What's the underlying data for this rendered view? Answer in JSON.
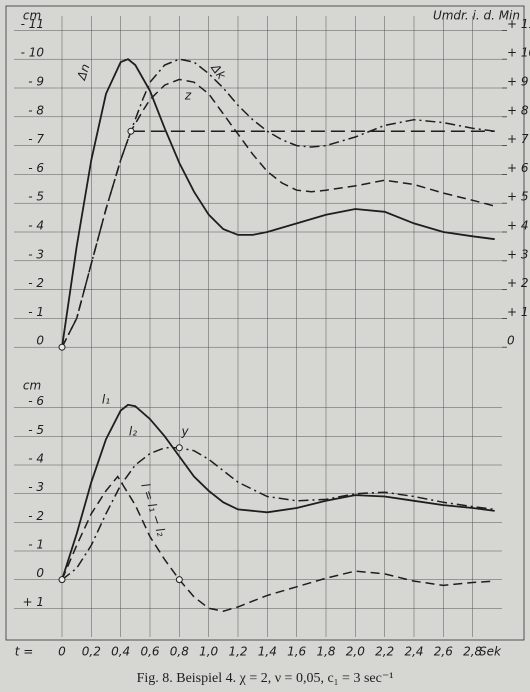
{
  "chart_data": [
    {
      "type": "line",
      "ylabel": "cm",
      "y2label": "Umdr. i. d. Min",
      "xlim": [
        0,
        3.0
      ],
      "ylim": [
        1,
        -11.5
      ],
      "y2lim": [
        -1,
        11.5
      ],
      "grid": true,
      "yticks": [
        {
          "value": -11,
          "label": "- 11"
        },
        {
          "value": -10,
          "label": "- 10"
        },
        {
          "value": -9,
          "label": "- 9"
        },
        {
          "value": -8,
          "label": "- 8"
        },
        {
          "value": -7,
          "label": "- 7"
        },
        {
          "value": -6,
          "label": "- 6"
        },
        {
          "value": -5,
          "label": "- 5"
        },
        {
          "value": -4,
          "label": "- 4"
        },
        {
          "value": -3,
          "label": "- 3"
        },
        {
          "value": -2,
          "label": "- 2"
        },
        {
          "value": -1,
          "label": "- 1"
        },
        0
      ],
      "y2ticks": [
        {
          "value": 11,
          "label": "+ 11"
        },
        {
          "value": 10,
          "label": "+ 10"
        },
        {
          "value": 9,
          "label": "+ 9"
        },
        {
          "value": 8,
          "label": "+ 8"
        },
        {
          "value": 7,
          "label": "+ 7"
        },
        {
          "value": 6,
          "label": "+ 6"
        },
        {
          "value": 5,
          "label": "+ 5"
        },
        {
          "value": 4,
          "label": "+ 4"
        },
        {
          "value": 3,
          "label": "+ 3"
        },
        {
          "value": 2,
          "label": "+ 2"
        },
        {
          "value": 1,
          "label": "+ 1"
        },
        0
      ],
      "series": [
        {
          "color": "#1e1e1e",
          "style": "solid",
          "x": [
            0,
            0.1,
            0.2,
            0.3,
            0.4,
            0.45,
            0.5,
            0.6,
            0.7,
            0.8,
            0.9,
            1.0,
            1.1,
            1.2,
            1.3,
            1.4,
            1.6,
            1.8,
            2.0,
            2.2,
            2.4,
            2.6,
            2.8,
            2.95
          ],
          "values": [
            0,
            -3.5,
            -6.5,
            -8.8,
            -9.9,
            -10.0,
            -9.8,
            -8.9,
            -7.6,
            -6.4,
            -5.4,
            -4.6,
            -4.1,
            -3.9,
            -3.9,
            -4.0,
            -4.3,
            -4.6,
            -4.8,
            -4.7,
            -4.3,
            -4.0,
            -3.85,
            -3.75
          ]
        },
        {
          "color": "#1e1e1e",
          "style": "dashdot",
          "x": [
            0,
            0.1,
            0.2,
            0.3,
            0.4,
            0.47,
            0.55,
            0.6,
            0.7,
            0.8,
            0.9,
            1.0,
            1.1,
            1.2,
            1.3,
            1.4,
            1.5,
            1.6,
            1.7,
            1.8,
            2.0,
            2.2,
            2.4,
            2.6,
            2.8,
            2.95
          ],
          "values": [
            0,
            -1.0,
            -2.9,
            -4.8,
            -6.5,
            -7.5,
            -8.6,
            -9.2,
            -9.8,
            -10.0,
            -9.9,
            -9.5,
            -9.0,
            -8.4,
            -7.9,
            -7.5,
            -7.2,
            -7.0,
            -6.95,
            -7.0,
            -7.3,
            -7.7,
            -7.9,
            -7.8,
            -7.6,
            -7.5
          ]
        },
        {
          "color": "#1e1e1e",
          "style": "dashed",
          "x": [
            0,
            0.1,
            0.2,
            0.3,
            0.4,
            0.47,
            0.55,
            0.6,
            0.7,
            0.8,
            0.9,
            1.0,
            1.1,
            1.2,
            1.3,
            1.4,
            1.5,
            1.6,
            1.7,
            1.8,
            2.0,
            2.2,
            2.4,
            2.6,
            2.8,
            2.95
          ],
          "values": [
            0,
            -1.0,
            -2.9,
            -4.8,
            -6.5,
            -7.5,
            -8.2,
            -8.6,
            -9.1,
            -9.3,
            -9.2,
            -8.8,
            -8.1,
            -7.4,
            -6.7,
            -6.1,
            -5.7,
            -5.45,
            -5.4,
            -5.45,
            -5.6,
            -5.8,
            -5.65,
            -5.35,
            -5.1,
            -4.9
          ]
        },
        {
          "color": "#1e1e1e",
          "style": "longdash",
          "x": [
            0.47,
            2.95
          ],
          "values": [
            -7.5,
            -7.5
          ]
        }
      ],
      "markers": [
        {
          "x": 0,
          "y": 0
        },
        {
          "x": 0.47,
          "y": -7.5
        }
      ],
      "annotations": [
        "Δn",
        "Δk",
        "z"
      ]
    },
    {
      "type": "line",
      "ylabel": "cm",
      "xlabel": "Sek",
      "xprefix": "t =",
      "xlim": [
        0,
        3.0
      ],
      "ylim": [
        2,
        -7
      ],
      "grid": true,
      "yticks": [
        {
          "value": -6,
          "label": "- 6"
        },
        {
          "value": -5,
          "label": "- 5"
        },
        {
          "value": -4,
          "label": "- 4"
        },
        {
          "value": -3,
          "label": "- 3"
        },
        {
          "value": -2,
          "label": "- 2"
        },
        {
          "value": -1,
          "label": "- 1"
        },
        0,
        {
          "value": 1,
          "label": "+ 1"
        }
      ],
      "xticks": [
        0,
        {
          "value": 0.2,
          "label": "0,2"
        },
        {
          "value": 0.4,
          "label": "0,4"
        },
        {
          "value": 0.6,
          "label": "0,6"
        },
        {
          "value": 0.8,
          "label": "0,8"
        },
        {
          "value": 1.0,
          "label": "1,0"
        },
        {
          "value": 1.2,
          "label": "1,2"
        },
        {
          "value": 1.4,
          "label": "1,4"
        },
        {
          "value": 1.6,
          "label": "1,6"
        },
        {
          "value": 1.8,
          "label": "1,8"
        },
        {
          "value": 2.0,
          "label": "2,0"
        },
        {
          "value": 2.2,
          "label": "2,2"
        },
        {
          "value": 2.4,
          "label": "2,4"
        },
        {
          "value": 2.6,
          "label": "2,6"
        },
        {
          "value": 2.8,
          "label": "2,8"
        }
      ],
      "series": [
        {
          "color": "#1e1e1e",
          "style": "solid",
          "x": [
            0,
            0.1,
            0.2,
            0.3,
            0.4,
            0.45,
            0.5,
            0.6,
            0.7,
            0.8,
            0.9,
            1.0,
            1.1,
            1.2,
            1.4,
            1.6,
            1.8,
            2.0,
            2.2,
            2.4,
            2.6,
            2.8,
            2.95
          ],
          "values": [
            0,
            -1.6,
            -3.4,
            -4.9,
            -5.9,
            -6.1,
            -6.05,
            -5.6,
            -5.0,
            -4.3,
            -3.6,
            -3.1,
            -2.7,
            -2.45,
            -2.35,
            -2.5,
            -2.75,
            -2.95,
            -2.9,
            -2.75,
            -2.6,
            -2.5,
            -2.4
          ]
        },
        {
          "color": "#1e1e1e",
          "style": "dashdot",
          "x": [
            0,
            0.1,
            0.2,
            0.3,
            0.4,
            0.5,
            0.6,
            0.7,
            0.8,
            0.9,
            1.0,
            1.1,
            1.2,
            1.4,
            1.6,
            1.8,
            2.0,
            2.2,
            2.4,
            2.6,
            2.8,
            2.95
          ],
          "values": [
            0,
            -0.4,
            -1.2,
            -2.3,
            -3.3,
            -4.0,
            -4.4,
            -4.6,
            -4.6,
            -4.5,
            -4.2,
            -3.8,
            -3.4,
            -2.9,
            -2.75,
            -2.8,
            -3.0,
            -3.05,
            -2.9,
            -2.7,
            -2.55,
            -2.45
          ]
        },
        {
          "color": "#1e1e1e",
          "style": "dashed",
          "x": [
            0,
            0.1,
            0.2,
            0.3,
            0.38,
            0.5,
            0.6,
            0.7,
            0.8,
            0.9,
            1.0,
            1.1,
            1.2,
            1.4,
            1.6,
            1.8,
            2.0,
            2.2,
            2.4,
            2.6,
            2.8,
            2.95
          ],
          "values": [
            0,
            -1.2,
            -2.3,
            -3.1,
            -3.6,
            -2.6,
            -1.5,
            -0.7,
            0,
            0.6,
            1.0,
            1.1,
            0.95,
            0.55,
            0.25,
            -0.05,
            -0.3,
            -0.2,
            0.05,
            0.2,
            0.1,
            0.05
          ]
        }
      ],
      "markers": [
        {
          "x": 0,
          "y": 0
        },
        {
          "x": 0.8,
          "y": -4.6
        },
        {
          "x": 0.8,
          "y": 0
        }
      ],
      "annotations": [
        "l₁",
        "l₂",
        "y",
        "l = l₁ − l₂"
      ]
    }
  ],
  "caption": "Fig. 8.  Beispiel 4.   χ = 2,  ν = 0,05,  c₁ = 3 sec⁻¹"
}
